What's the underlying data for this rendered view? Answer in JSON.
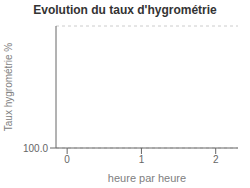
{
  "chart_data": {
    "type": "line",
    "title": "Evolution du taux d'hygrométrie",
    "xlabel": "heure par heure",
    "ylabel": "Taux hygrométrie %",
    "x": [],
    "values": [],
    "xlim": [
      -0.15,
      2.3
    ],
    "xticks": [
      0,
      1,
      2
    ],
    "ylim": [
      100.0,
      500.0
    ],
    "yticks": [
      {
        "value": 100.0,
        "label": "100.0"
      }
    ],
    "grid": "y"
  }
}
